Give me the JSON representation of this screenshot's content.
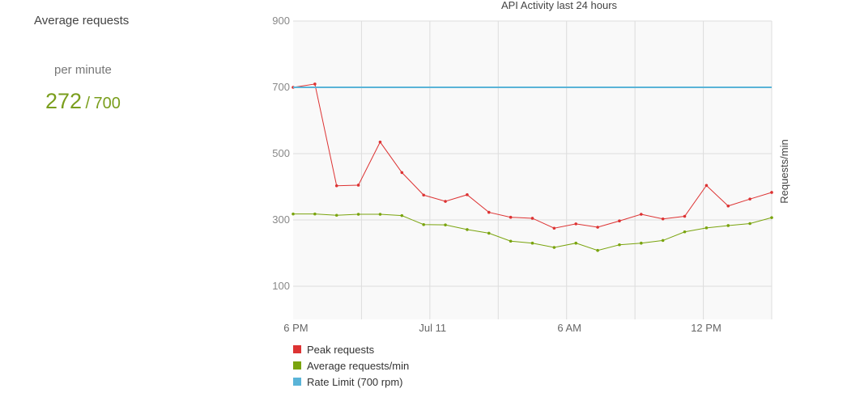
{
  "stats": {
    "title": "Average requests",
    "subtitle": "per minute",
    "current": "272",
    "separator": "/",
    "max": "700"
  },
  "chart_data": {
    "type": "line",
    "title": "API Activity last 24 hours",
    "xlabel": "",
    "ylabel": "Requests/min",
    "ylim": [
      0,
      900
    ],
    "y_ticks": [
      100,
      300,
      500,
      700,
      900
    ],
    "x_tick_labels": [
      "6 PM",
      "Jul 11",
      "6 AM",
      "12 PM"
    ],
    "grid": true,
    "legend_position": "bottom-left",
    "series": [
      {
        "name": "Peak requests",
        "color": "#dd3333",
        "values": [
          700,
          710,
          403,
          405,
          535,
          443,
          375,
          356,
          376,
          323,
          308,
          305,
          275,
          288,
          278,
          297,
          317,
          303,
          311,
          404,
          342,
          363,
          383
        ]
      },
      {
        "name": "Average requests/min",
        "color": "#7aa40e",
        "values": [
          318,
          318,
          314,
          317,
          317,
          313,
          286,
          285,
          271,
          260,
          236,
          230,
          217,
          230,
          208,
          225,
          230,
          238,
          264,
          276,
          283,
          289,
          307
        ]
      },
      {
        "name": "Rate Limit (700 rpm)",
        "color": "#5ab4d8",
        "values": [
          700,
          700,
          700,
          700,
          700,
          700,
          700,
          700,
          700,
          700,
          700,
          700,
          700,
          700,
          700,
          700,
          700,
          700,
          700,
          700,
          700,
          700,
          700
        ]
      }
    ]
  }
}
